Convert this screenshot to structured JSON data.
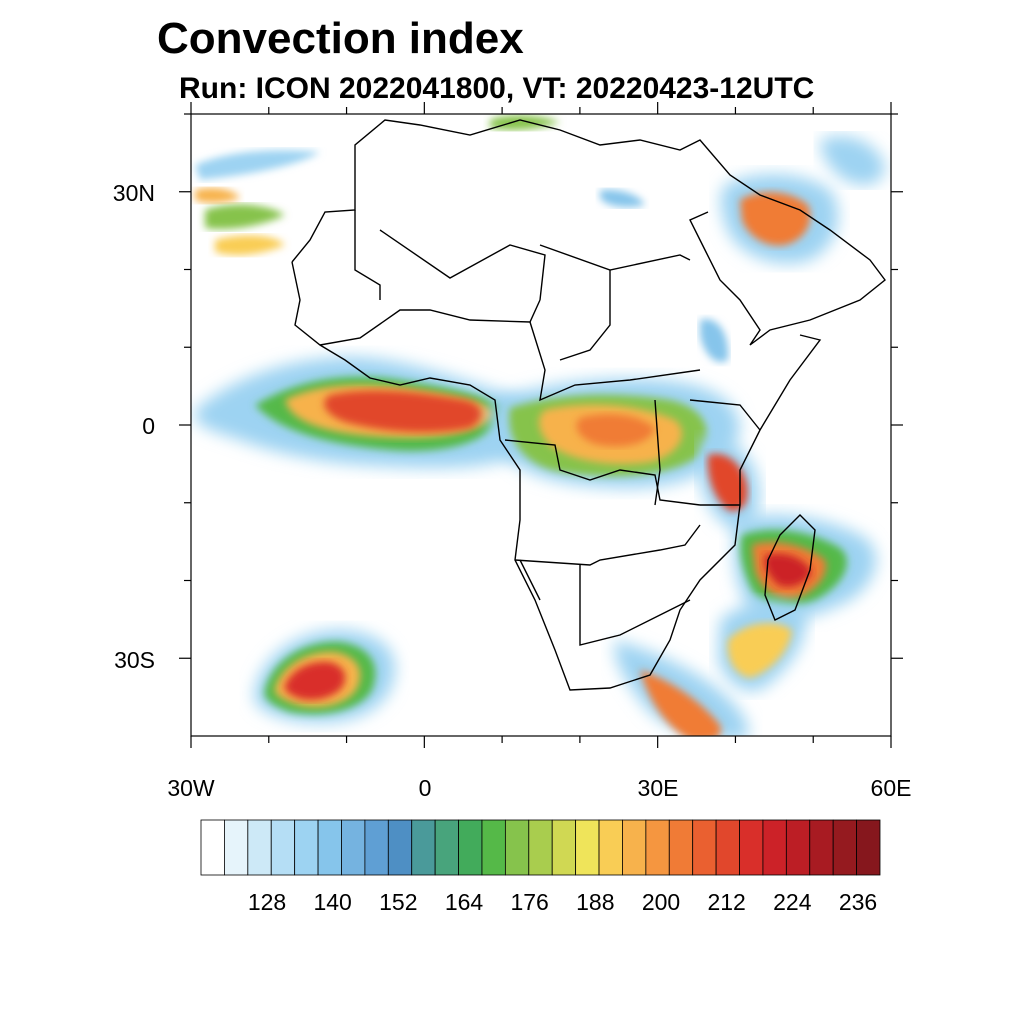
{
  "title": "Convection index",
  "subtitle": "Run: ICON 2022041800,  VT: 20220423-12UTC",
  "axes": {
    "lat_labels": [
      "30N",
      "0",
      "30S"
    ],
    "lon_labels": [
      "30W",
      "0",
      "30E",
      "60E"
    ]
  },
  "map_data": {
    "lon_range": [
      -30,
      60
    ],
    "lat_range": [
      -40,
      40
    ],
    "variable": "Convection index",
    "regions": [
      {
        "name": "equatorial-atlantic-band",
        "intensity": 215
      },
      {
        "name": "congo-basin",
        "intensity": 195
      },
      {
        "name": "east-africa-tanzania",
        "intensity": 225
      },
      {
        "name": "madagascar",
        "intensity": 228
      },
      {
        "name": "south-atlantic-cell",
        "intensity": 222
      },
      {
        "name": "southeast-south-africa-coast",
        "intensity": 215
      },
      {
        "name": "arabian-peninsula",
        "intensity": 205
      }
    ]
  },
  "colorbar": {
    "labels": [
      "128",
      "140",
      "152",
      "164",
      "176",
      "188",
      "200",
      "212",
      "224",
      "236"
    ],
    "colors": [
      "#ffffff",
      "#e6f4fb",
      "#cde9f7",
      "#b5def5",
      "#9dd3f2",
      "#86c5eb",
      "#75b3e0",
      "#5f9fd4",
      "#4e8fc4",
      "#4a9a9a",
      "#48a47c",
      "#42ab5b",
      "#55b948",
      "#86c34c",
      "#a9cd4e",
      "#d0d853",
      "#efe45a",
      "#f9cd55",
      "#f7b24c",
      "#f59640",
      "#f07b36",
      "#ea6030",
      "#e1472c",
      "#d92f2a",
      "#cc2228",
      "#bc1e25",
      "#a81b22",
      "#951a1f",
      "#86171d"
    ]
  }
}
